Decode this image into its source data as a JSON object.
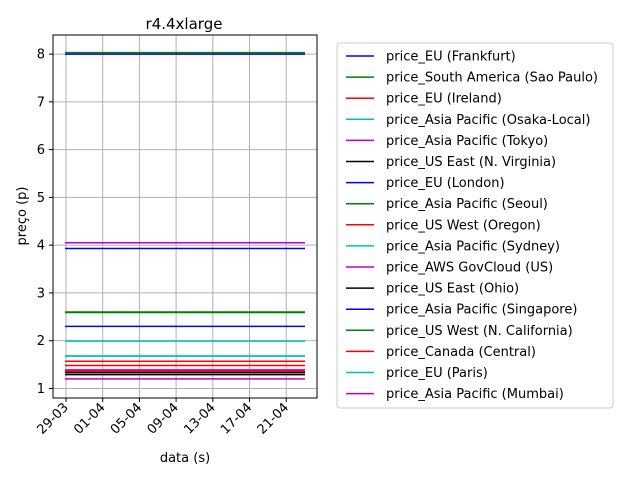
{
  "chart_data": {
    "type": "line",
    "title": "r4.4xlarge",
    "xlabel": "data (s)",
    "ylabel": "preço (p)",
    "x_ticks": [
      "29-03",
      "01-04",
      "05-04",
      "09-04",
      "13-04",
      "17-04",
      "21-04"
    ],
    "x_range": [
      "2018-03-29",
      "2018-04-23"
    ],
    "ylim": [
      0.8,
      8.4
    ],
    "y_ticks": [
      1,
      2,
      3,
      4,
      5,
      6,
      7,
      8
    ],
    "grid": true,
    "legend_position": "outside-right",
    "series": [
      {
        "name": "price_EU (Frankfurt)",
        "color": "#0000ff",
        "values": [
          8.0,
          8.0
        ]
      },
      {
        "name": "price_South America (Sao Paulo)",
        "color": "#008000",
        "values": [
          8.03,
          8.03
        ]
      },
      {
        "name": "price_EU (Ireland)",
        "color": "#ff0000",
        "values": [
          1.48,
          1.48
        ]
      },
      {
        "name": "price_Asia Pacific (Osaka-Local)",
        "color": "#00bfbf",
        "values": [
          1.99,
          1.99
        ]
      },
      {
        "name": "price_Asia Pacific (Tokyo)",
        "color": "#bf00bf",
        "values": [
          4.05,
          4.05
        ]
      },
      {
        "name": "price_US East (N. Virginia)",
        "color": "#000000",
        "values": [
          1.33,
          1.33
        ]
      },
      {
        "name": "price_EU (London)",
        "color": "#0000ff",
        "values": [
          3.93,
          3.93
        ]
      },
      {
        "name": "price_Asia Pacific (Seoul)",
        "color": "#008000",
        "values": [
          2.59,
          2.59
        ]
      },
      {
        "name": "price_US West (Oregon)",
        "color": "#ff0000",
        "values": [
          1.36,
          1.36
        ]
      },
      {
        "name": "price_Asia Pacific (Sydney)",
        "color": "#00bfbf",
        "values": [
          1.68,
          1.68
        ]
      },
      {
        "name": "price_AWS GovCloud (US)",
        "color": "#bf00bf",
        "values": [
          1.2,
          1.2
        ]
      },
      {
        "name": "price_US East (Ohio)",
        "color": "#000000",
        "values": [
          1.29,
          1.29
        ]
      },
      {
        "name": "price_Asia Pacific (Singapore)",
        "color": "#0000ff",
        "values": [
          2.3,
          2.3
        ]
      },
      {
        "name": "price_US West (N. California)",
        "color": "#008000",
        "values": [
          2.6,
          2.6
        ]
      },
      {
        "name": "price_Canada (Central)",
        "color": "#ff0000",
        "values": [
          1.57,
          1.57
        ]
      },
      {
        "name": "price_EU (Paris)",
        "color": "#00bfbf",
        "values": [
          1.68,
          1.68
        ]
      },
      {
        "name": "price_Asia Pacific (Mumbai)",
        "color": "#bf00bf",
        "values": [
          1.39,
          1.39
        ]
      }
    ]
  }
}
